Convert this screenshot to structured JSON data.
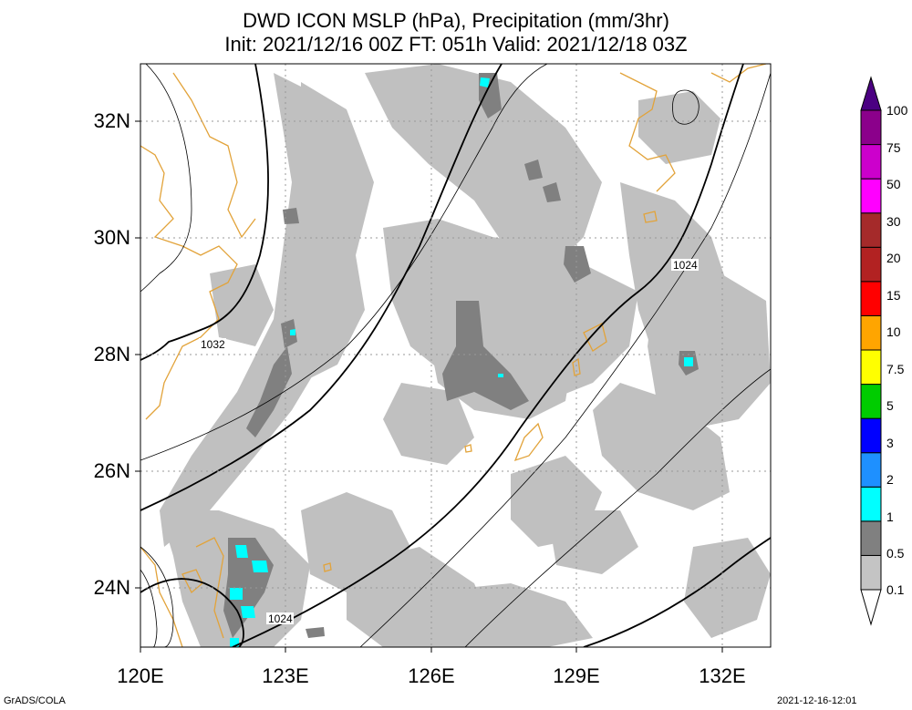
{
  "title": {
    "line1": "DWD ICON MSLP (hPa), Precipitation (mm/3hr)",
    "line2": "Init: 2021/12/16 00Z  FT: 051h  Valid: 2021/12/18 03Z"
  },
  "map": {
    "lat_range": [
      23,
      33
    ],
    "lon_range": [
      120,
      133
    ],
    "lat_ticks": [
      "32N",
      "30N",
      "28N",
      "26N",
      "24N"
    ],
    "lon_ticks": [
      "120E",
      "123E",
      "126E",
      "129E",
      "132E"
    ],
    "isobar_labels": [
      "1032",
      "1024",
      "1024"
    ],
    "grid": true,
    "coastline_color": "#e2a33a",
    "precip_colors": {
      "light": "#c0c0c0",
      "moderate": "#808080",
      "heavy": "#00ffff"
    }
  },
  "colorbar": {
    "labels": [
      "0.1",
      "0.5",
      "1",
      "2",
      "3",
      "5",
      "7.5",
      "10",
      "15",
      "20",
      "30",
      "50",
      "75",
      "100"
    ],
    "colors": [
      "#ffffff",
      "#c4c4c4",
      "#808080",
      "#00ffff",
      "#1e90ff",
      "#0000ff",
      "#00cc00",
      "#ffff00",
      "#ffa500",
      "#ff0000",
      "#b22222",
      "#a52a2a",
      "#ff00ff",
      "#cc00cc",
      "#8b008b",
      "#4b0082"
    ]
  },
  "footer": {
    "left": "GrADS/COLA",
    "right": "2021-12-16-12:01"
  }
}
